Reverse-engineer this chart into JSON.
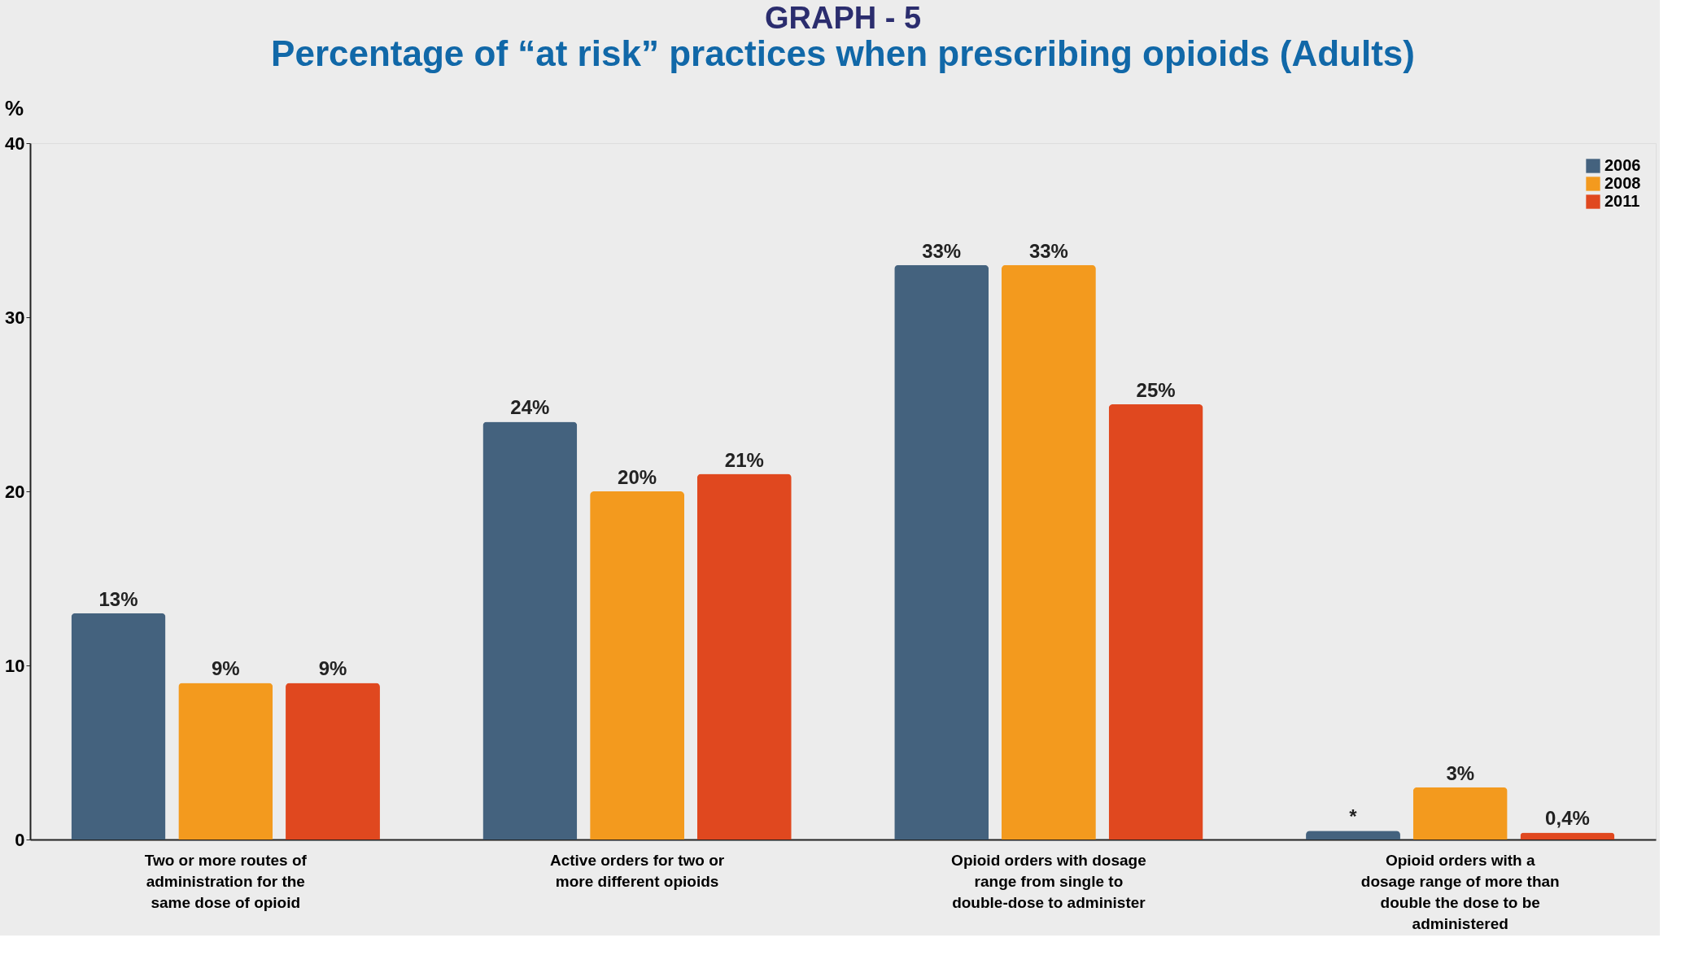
{
  "chart_data": {
    "type": "bar",
    "title": "GRAPH - 5",
    "subtitle": "Percentage of “at risk” practices when prescribing opioids (Adults)",
    "ylabel": "%",
    "categories": [
      "Two or more routes of administration for the same dose of opioid",
      "Active orders for two or more different opioids",
      "Opioid orders with dosage range from single to double-dose to administer",
      "Opioid orders with a dosage range of more than double the dose to be administered"
    ],
    "series": [
      {
        "name": "2006",
        "color": "#44627e",
        "values": [
          13,
          24,
          33,
          0.5
        ],
        "value_labels": [
          "13%",
          "24%",
          "33%",
          "*"
        ]
      },
      {
        "name": "2008",
        "color": "#f39a1e",
        "values": [
          9,
          20,
          33,
          3
        ],
        "value_labels": [
          "9%",
          "20%",
          "33%",
          "3%"
        ]
      },
      {
        "name": "2011",
        "color": "#e0481f",
        "values": [
          9,
          21,
          25,
          0.4
        ],
        "value_labels": [
          "9%",
          "21%",
          "25%",
          "0,4%"
        ]
      }
    ],
    "ylim": [
      0,
      40
    ],
    "yticks": [
      0,
      10,
      20,
      30,
      40
    ],
    "grid": false,
    "legend": "top right"
  }
}
